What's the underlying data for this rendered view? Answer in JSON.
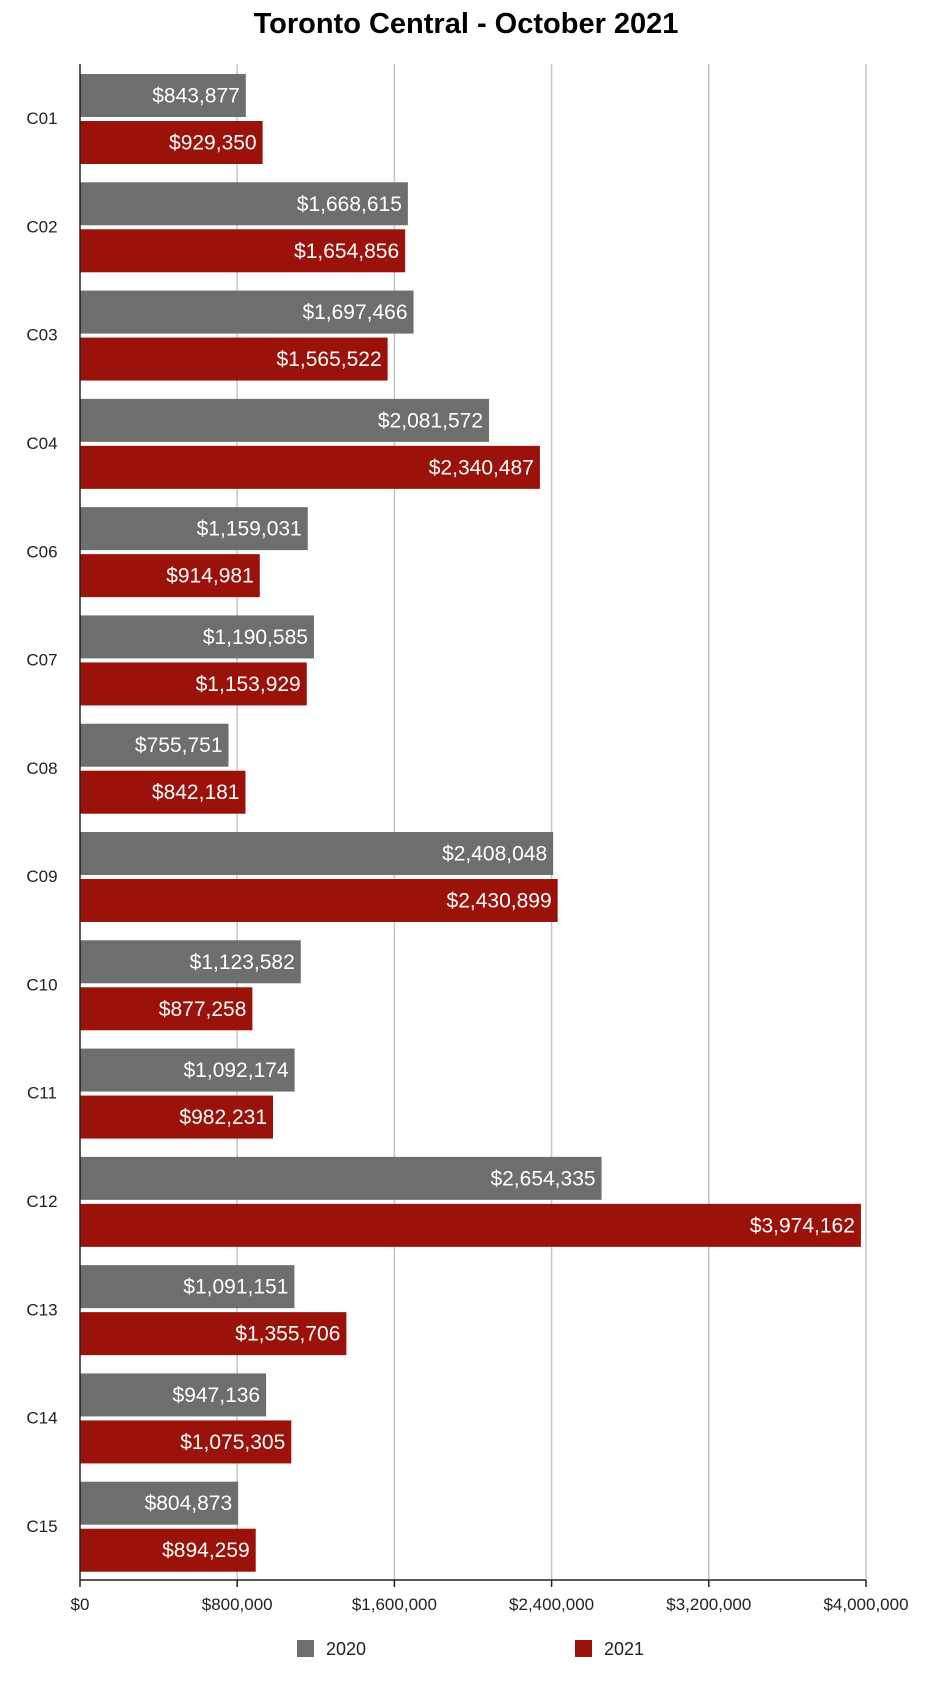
{
  "chart_data": {
    "type": "bar",
    "orientation": "horizontal",
    "title": "Toronto Central - October 2021",
    "categories": [
      "C01",
      "C02",
      "C03",
      "C04",
      "C06",
      "C07",
      "C08",
      "C09",
      "C10",
      "C11",
      "C12",
      "C13",
      "C14",
      "C15"
    ],
    "series": [
      {
        "name": "2020",
        "color": "#6d6f6d",
        "values": [
          843877,
          1668615,
          1697466,
          2081572,
          1159031,
          1190585,
          755751,
          2408048,
          1123582,
          1092174,
          2654335,
          1091151,
          947136,
          804873
        ],
        "labels": [
          "$843,877",
          "$1,668,615",
          "$1,697,466",
          "$2,081,572",
          "$1,159,031",
          "$1,190,585",
          "$755,751",
          "$2,408,048",
          "$1,123,582",
          "$1,092,174",
          "$2,654,335",
          "$1,091,151",
          "$947,136",
          "$804,873"
        ]
      },
      {
        "name": "2021",
        "color": "#9a1209",
        "values": [
          929350,
          1654856,
          1565522,
          2340487,
          914981,
          1153929,
          842181,
          2430899,
          877258,
          982231,
          3974162,
          1355706,
          1075305,
          894259
        ],
        "labels": [
          "$929,350",
          "$1,654,856",
          "$1,565,522",
          "$2,340,487",
          "$914,981",
          "$1,153,929",
          "$842,181",
          "$2,430,899",
          "$877,258",
          "$982,231",
          "$3,974,162",
          "$1,355,706",
          "$1,075,305",
          "$894,259"
        ]
      }
    ],
    "xlim": [
      0,
      4000000
    ],
    "x_ticks": [
      0,
      800000,
      1600000,
      2400000,
      3200000,
      4000000
    ],
    "x_tick_labels": [
      "$0",
      "$800,000",
      "$1,600,000",
      "$2,400,000",
      "$3,200,000",
      "$4,000,000"
    ],
    "xlabel": "",
    "ylabel": "",
    "grid": "vertical",
    "legend_position": "bottom"
  }
}
